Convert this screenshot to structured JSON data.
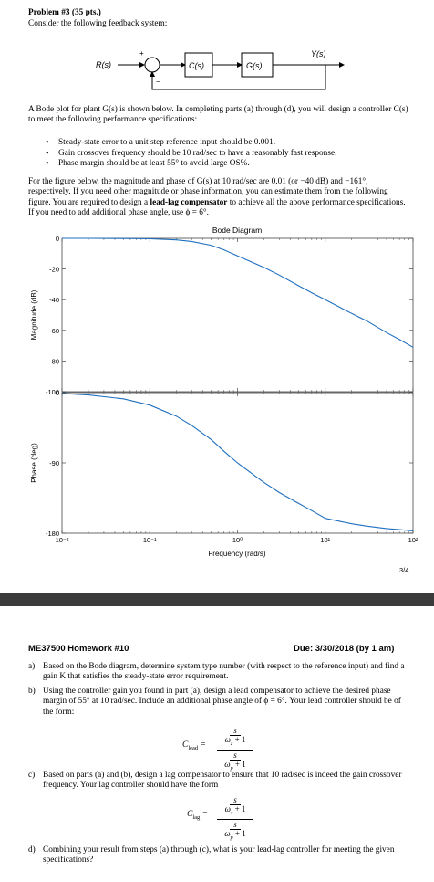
{
  "page1": {
    "problem_title": "Problem #3 (35 pts.)",
    "problem_subtitle": "Consider the following feedback system:",
    "block_diagram": {
      "input_label": "R(s)",
      "plus_sign": "+",
      "minus_sign": "−",
      "controller_label": "C(s)",
      "plant_label": "G(s)",
      "output_label": "Y(s)"
    },
    "intro_text": "A Bode plot for plant G(s) is shown below. In completing parts (a) through (d), you will design a controller C(s) to meet the following performance specifications:",
    "specs": [
      "Steady-state error to a unit step reference input should be 0.001.",
      "Gain crossover frequency should be 10 rad/sec to have a reasonably fast response.",
      "Phase margin should be at least 55° to avoid large OS%."
    ],
    "para2_a": "For the figure below, the magnitude and phase of G(s) at 10 rad/sec are 0.01 (or −40 dB) and −161°, respectively. If you need other magnitude or phase information, you can estimate them from the following figure. You are required to design a ",
    "para2_bold": "lead-lag compensator",
    "para2_b": " to achieve all the above performance specifications. If you need to add additional phase angle, use ϕ = 6°.",
    "page_number": "3/4"
  },
  "chart_data": {
    "type": "line",
    "title": "Bode Diagram",
    "xlabel": "Frequency (rad/s)",
    "x_scale": "log",
    "xlim": [
      0.01,
      100
    ],
    "x_ticks": [
      "10⁻²",
      "10⁻¹",
      "10⁰",
      "10¹",
      "10²"
    ],
    "magnitude": {
      "ylabel": "Magnitude (dB)",
      "ylim": [
        -100,
        0
      ],
      "y_ticks": [
        "0",
        "-20",
        "-40",
        "-60",
        "-80",
        "-100"
      ],
      "x": [
        0.01,
        0.02,
        0.05,
        0.1,
        0.2,
        0.3,
        0.5,
        0.7,
        1,
        2,
        3,
        5,
        7,
        10,
        20,
        30,
        50,
        70,
        100
      ],
      "y": [
        0,
        0,
        -0.1,
        -0.3,
        -1,
        -2,
        -4.5,
        -7.5,
        -11.5,
        -19,
        -24,
        -31,
        -35.5,
        -40,
        -49,
        -54,
        -61.5,
        -66,
        -71
      ]
    },
    "phase": {
      "ylabel": "Phase (deg)",
      "ylim": [
        -180,
        0
      ],
      "y_ticks": [
        "0",
        "-90",
        "-180"
      ],
      "x": [
        0.01,
        0.02,
        0.05,
        0.1,
        0.2,
        0.3,
        0.5,
        0.7,
        1,
        2,
        3,
        5,
        7,
        10,
        20,
        30,
        50,
        70,
        100
      ],
      "y": [
        -1,
        -3,
        -8,
        -16,
        -30,
        -42,
        -60,
        -75,
        -90,
        -115,
        -128,
        -142,
        -151,
        -161,
        -168,
        -171,
        -174,
        -175.5,
        -177
      ]
    },
    "grid": false,
    "line_color": "#1f6fbf"
  },
  "page2": {
    "course": "ME37500 Homework #10",
    "due": "Due: 3/30/2018 (by 1 am)",
    "parts": [
      {
        "letter": "a)",
        "text": "Based on the Bode diagram, determine system type number (with respect to the reference input) and find a gain K that satisfies the steady-state error requirement."
      },
      {
        "letter": "b)",
        "text": "Using the controller gain you found in part (a), design a lead compensator to achieve the desired phase margin of 55° at 10 rad/sec. Include an additional phase angle of ϕ = 6°. Your lead controller should be of the form:"
      },
      {
        "letter": "c)",
        "text": "Based on parts (a) and (b), design a lag compensator to ensure that 10 rad/sec is indeed the gain crossover frequency. Your lag controller should have the form"
      },
      {
        "letter": "d)",
        "text": "Combining your result from steps (a) through (c), what is your lead-lag controller for meeting the given specifications?"
      }
    ],
    "lead_eq": {
      "lhs": "C_lead =",
      "num": "s/ωz + 1",
      "den": "s/ωp + 1"
    },
    "lag_eq": {
      "lhs": "C_lag =",
      "num": "s/ωz + 1",
      "den": "s/ωp + 1"
    }
  }
}
